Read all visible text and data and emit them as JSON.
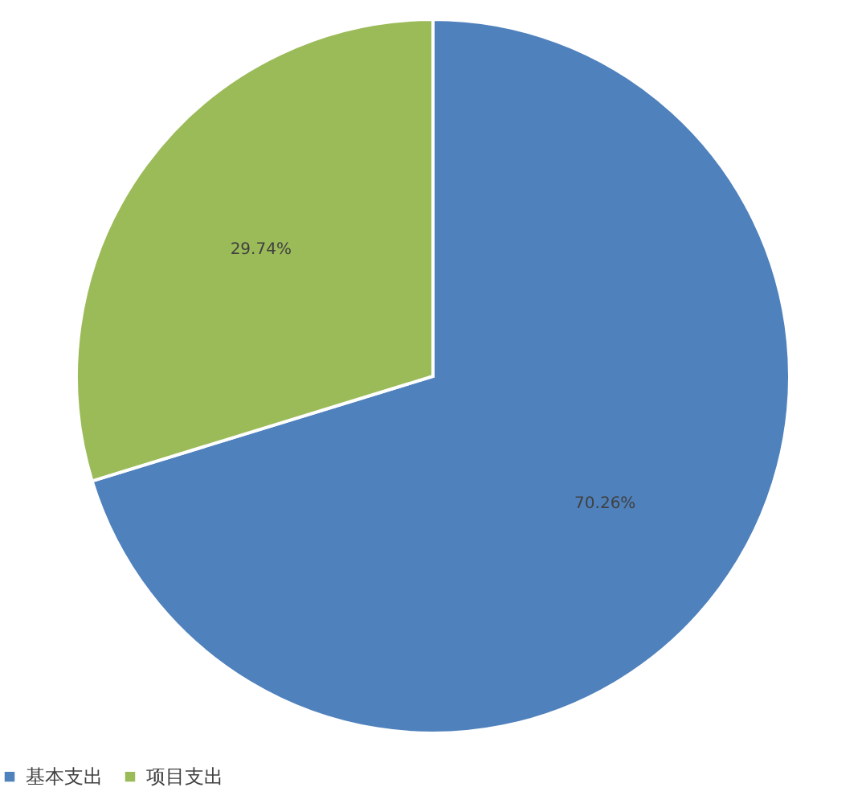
{
  "chart_data": {
    "type": "pie",
    "categories": [
      "基本支出",
      "项目支出"
    ],
    "values": [
      70.26,
      29.74
    ],
    "colors": [
      "#4f81bd",
      "#9bbb59"
    ],
    "value_labels": [
      "70.26%",
      "29.74%"
    ],
    "legend": "bottom"
  }
}
